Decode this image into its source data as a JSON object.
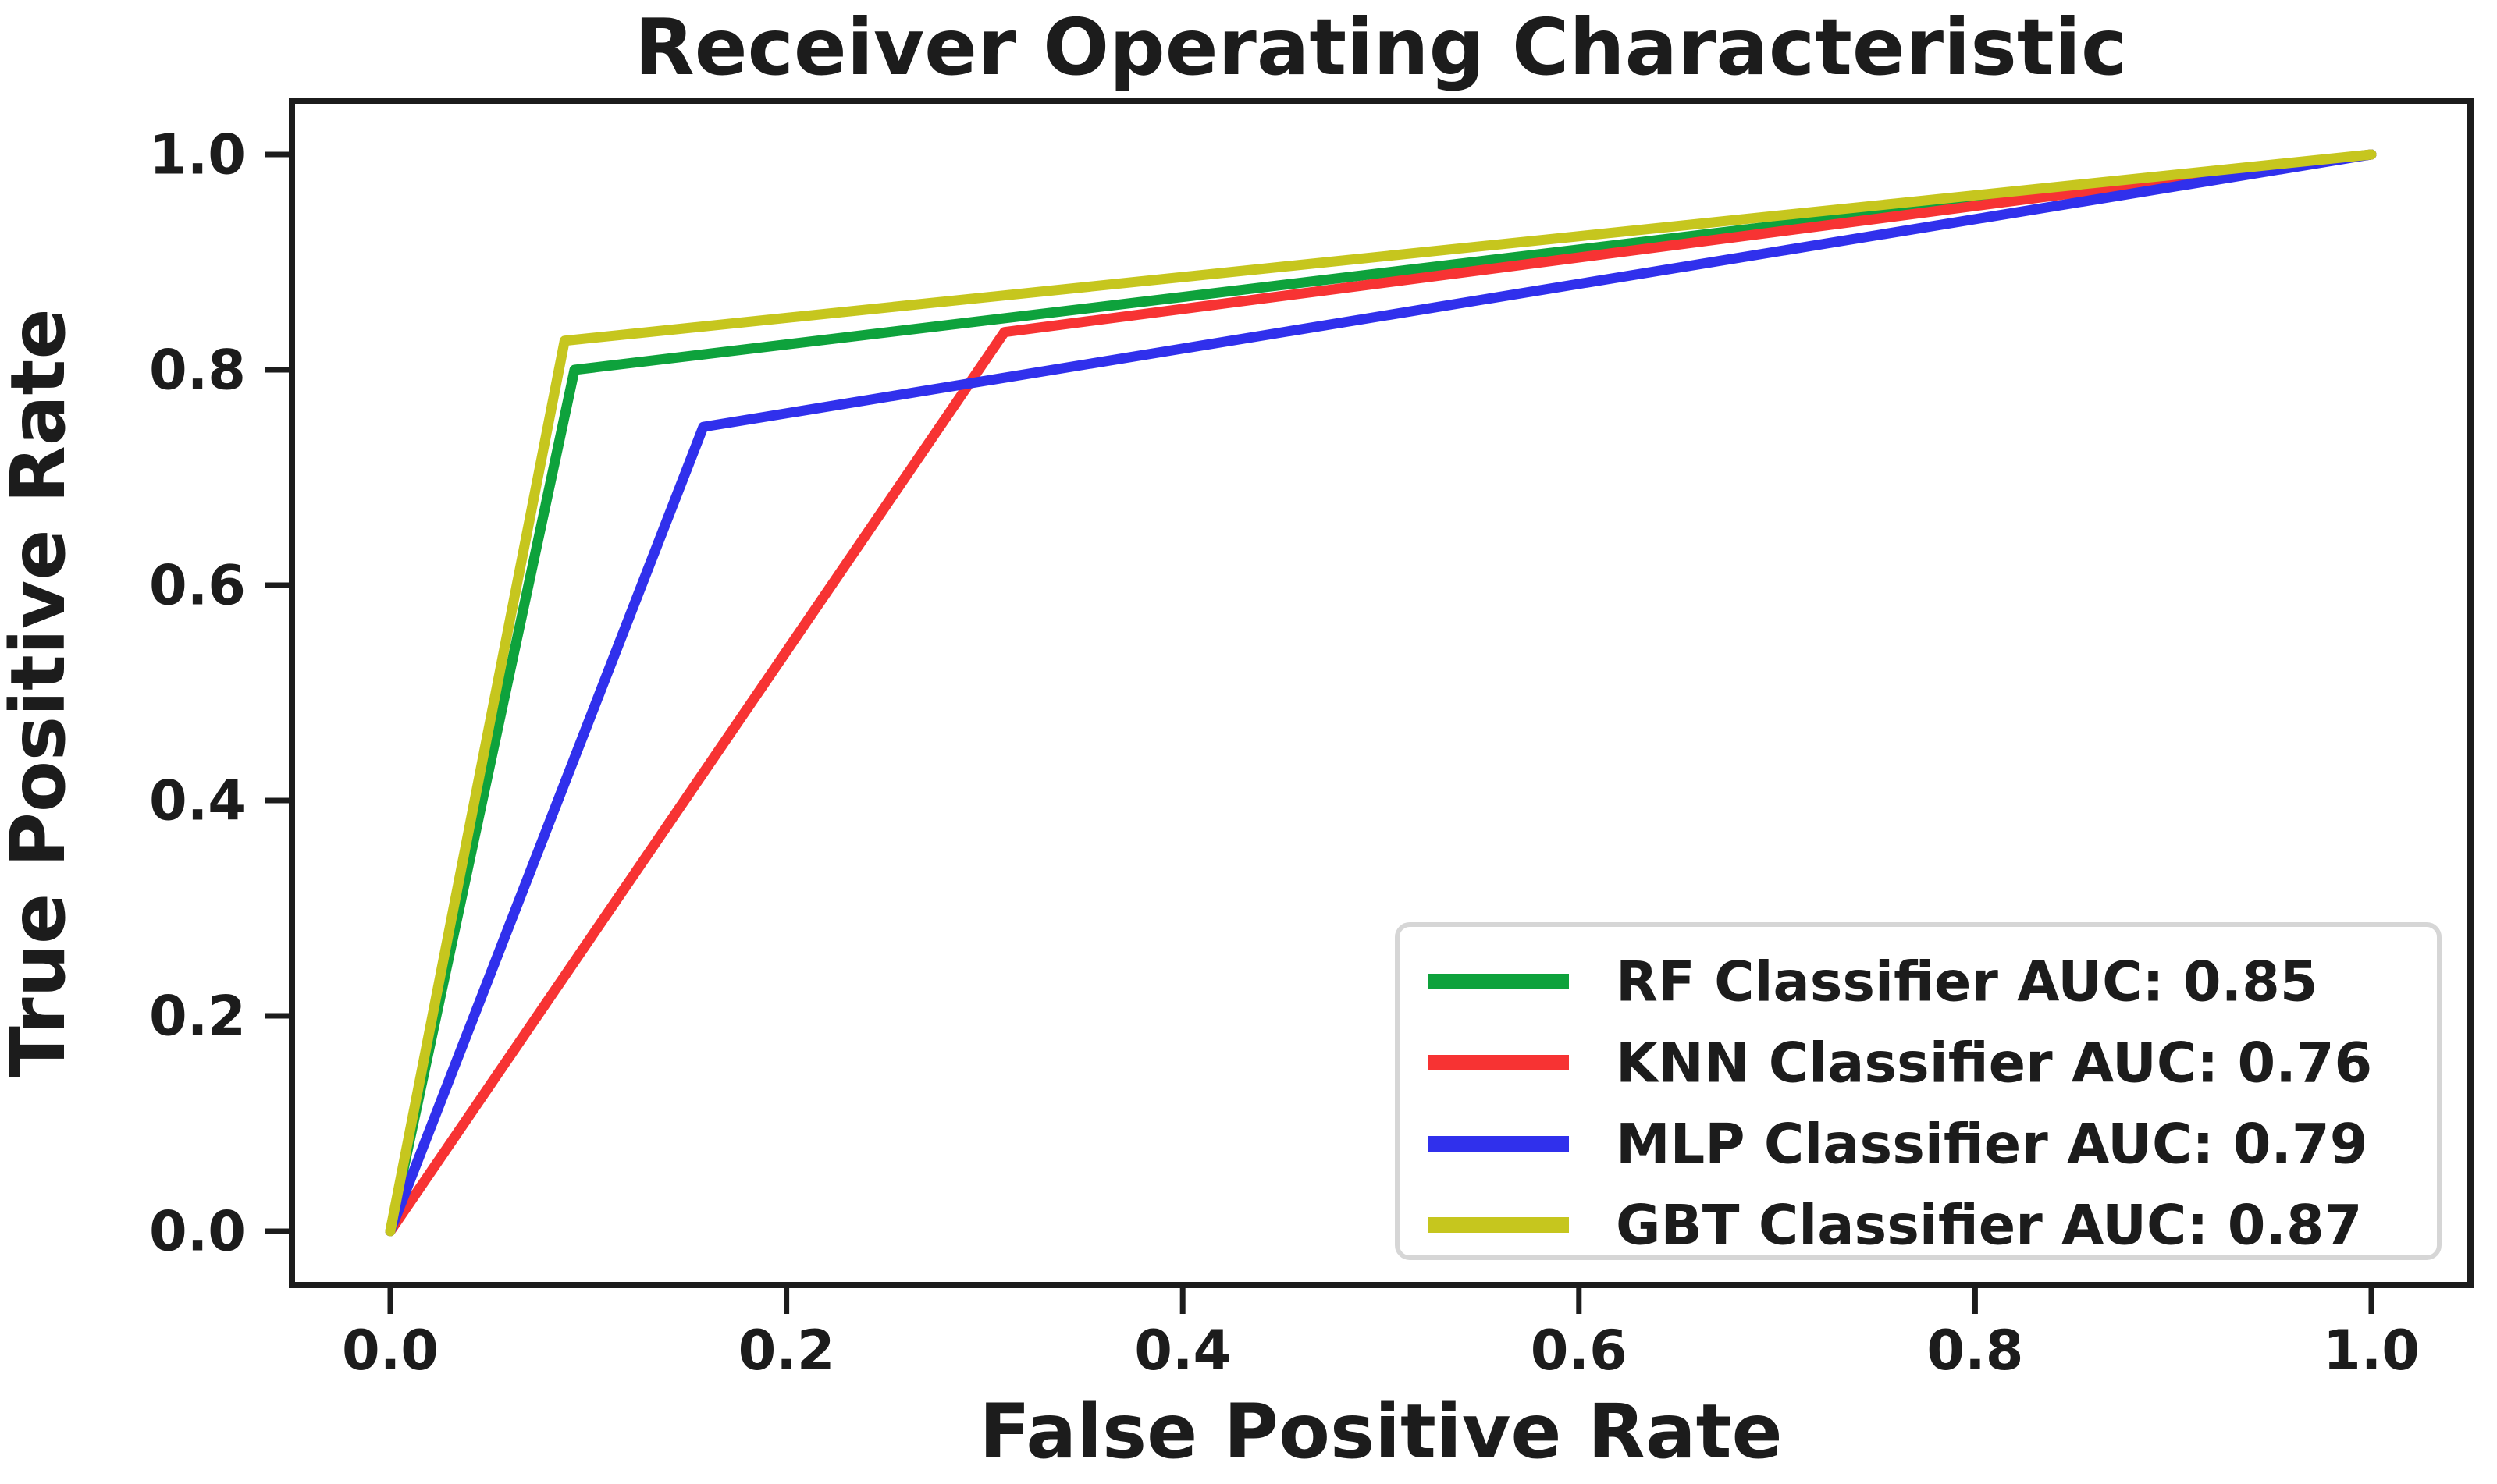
{
  "chart_data": {
    "type": "line",
    "title": "Receiver Operating Characteristic",
    "xlabel": "False Positive Rate",
    "ylabel": "True Positive Rate",
    "xlim": [
      0.0,
      1.0
    ],
    "ylim": [
      0.0,
      1.0
    ],
    "grid": false,
    "legend_position": "lower right",
    "x_ticks": [
      "0.0",
      "0.2",
      "0.4",
      "0.6",
      "0.8",
      "1.0"
    ],
    "y_ticks": [
      "0.0",
      "0.2",
      "0.4",
      "0.6",
      "0.8",
      "1.0"
    ],
    "series": [
      {
        "name": "RF Classifier",
        "legend_label": "RF Classifier AUC: 0.85",
        "auc": 0.85,
        "color": "#0EA23C",
        "points": [
          [
            0.0,
            0.0
          ],
          [
            0.093,
            0.8
          ],
          [
            1.0,
            1.0
          ]
        ]
      },
      {
        "name": "KNN Classifier",
        "legend_label": "KNN Classifier AUC: 0.76",
        "auc": 0.76,
        "color": "#F73333",
        "points": [
          [
            0.0,
            0.0
          ],
          [
            0.31,
            0.835
          ],
          [
            1.0,
            1.0
          ]
        ]
      },
      {
        "name": "MLP Classifier",
        "legend_label": "MLP Classifier AUC: 0.79",
        "auc": 0.79,
        "color": "#3030EC",
        "points": [
          [
            0.0,
            0.0
          ],
          [
            0.158,
            0.747
          ],
          [
            1.0,
            1.0
          ]
        ]
      },
      {
        "name": "GBT Classifier",
        "legend_label": "GBT Classifier AUC: 0.87",
        "auc": 0.87,
        "color": "#C6C61E",
        "points": [
          [
            0.0,
            0.0
          ],
          [
            0.088,
            0.827
          ],
          [
            1.0,
            1.0
          ]
        ]
      }
    ]
  }
}
